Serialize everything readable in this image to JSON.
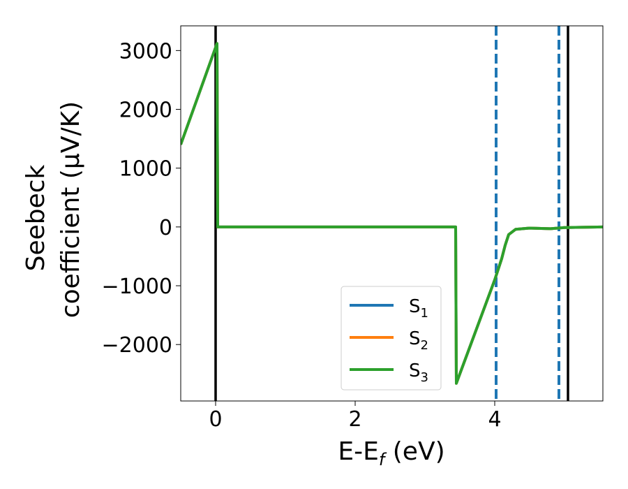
{
  "chart_data": {
    "type": "line",
    "xlabel": "E-E_f (eV)",
    "xlabel_parts": {
      "main": "E-E",
      "sub": "f",
      "rest": " (eV)"
    },
    "ylabel_lines": [
      "Seebeck",
      "coefficient  (μV/K)"
    ],
    "xlim": [
      -0.5,
      5.55
    ],
    "ylim": [
      -2960,
      3420
    ],
    "xticks": [
      0,
      2,
      4
    ],
    "xtick_labels": [
      "0",
      "2",
      "4"
    ],
    "yticks": [
      -2000,
      -1000,
      0,
      1000,
      2000,
      3000
    ],
    "ytick_labels": [
      "−2000",
      "−1000",
      "0",
      "1000",
      "2000",
      "3000"
    ],
    "grid": false,
    "legend_position": "lower-center",
    "series": [
      {
        "name": "S_1",
        "name_main": "S",
        "name_sub": "1",
        "color": "#1f77b4",
        "x": [
          -0.5,
          0.02,
          0.03,
          3.44,
          3.45,
          4.0,
          4.1,
          4.15,
          4.2,
          4.3,
          4.5,
          4.8,
          5.0,
          5.55
        ],
        "y": [
          1400,
          3120,
          0,
          0,
          -2660,
          -900,
          -540,
          -310,
          -130,
          -40,
          -20,
          -30,
          -10,
          0
        ]
      },
      {
        "name": "S_2",
        "name_main": "S",
        "name_sub": "2",
        "color": "#ff7f0e",
        "x": [
          -0.5,
          0.02,
          0.03,
          3.44,
          3.45,
          4.0,
          4.1,
          4.15,
          4.2,
          4.3,
          4.5,
          4.8,
          5.0,
          5.55
        ],
        "y": [
          1400,
          3120,
          0,
          0,
          -2660,
          -900,
          -540,
          -310,
          -130,
          -40,
          -20,
          -30,
          -10,
          0
        ]
      },
      {
        "name": "S_3",
        "name_main": "S",
        "name_sub": "3",
        "color": "#2ca02c",
        "x": [
          -0.5,
          0.02,
          0.03,
          3.44,
          3.45,
          4.0,
          4.1,
          4.15,
          4.2,
          4.3,
          4.5,
          4.8,
          5.0,
          5.55
        ],
        "y": [
          1400,
          3120,
          0,
          0,
          -2660,
          -900,
          -540,
          -310,
          -130,
          -40,
          -20,
          -30,
          -10,
          0
        ]
      }
    ],
    "vlines": [
      {
        "x": 0.0,
        "style": "solid",
        "color": "#000000"
      },
      {
        "x": 5.05,
        "style": "solid",
        "color": "#000000"
      },
      {
        "x": 4.02,
        "style": "dashed",
        "color": "#1f77b4"
      },
      {
        "x": 4.92,
        "style": "dashed",
        "color": "#1f77b4"
      }
    ]
  }
}
